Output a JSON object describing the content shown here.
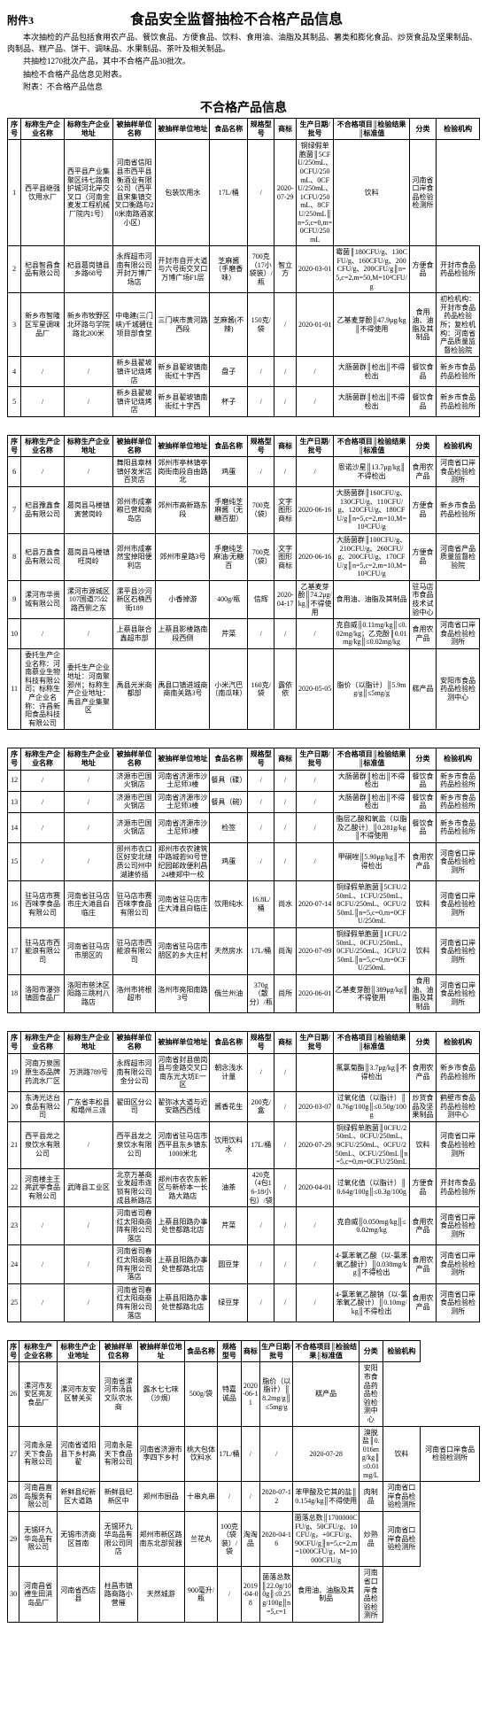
{
  "attachment_label": "附件3",
  "main_title": "食品安全监督抽检不合格产品信息",
  "intro_line1": "本次抽检的产品包括食用农产品、餐饮食品、方便食品、饮料、食用油、油脂及其制品、薯类和膨化食品、炒货食品及坚果制品、肉制品、糕产品、饼干、调味品、水果制品、茶叶及相关制品。",
  "intro_line2": "共抽检1270批次产品，其中不合格产品30批次。",
  "intro_line3": "抽检不合格产品信息见附表。",
  "intro_line4": "附表：不合格产品信息",
  "sub_title": "不合格产品信息",
  "columns": [
    "序号",
    "标称生产企业名称",
    "标称生产企业地址",
    "被抽样单位名称",
    "被抽样单位地址",
    "食品名称",
    "规格型号",
    "商标",
    "生产日期/批号",
    "不合格项目║检验结果║标准值",
    "分类",
    "检验机构"
  ],
  "sections": [
    {
      "rows": [
        [
          "1",
          "西平县继强饮用水厂",
          "西平县产业集聚区纬七路南护城河北岸交叉口（河南金麦发工程机械厂院内1号）",
          "河南省信阳县市西平县衡酒业有限公司（西平县宋集镇交叉口衡路与20米南路酒家小区）",
          "包装饮用水",
          "17L/桶",
          "/",
          "2020-07-29",
          "铜绿假单胞菌║5CFU/250mL、0CFU/250mL、0CFU/250mL、1CFU/250mL、8CFU/250mL║n=5,c=0,m=0CFU/250mL",
          "饮料",
          "河南省口岸食品检验检测所"
        ],
        [
          "2",
          "杞县智昌食品有限公司",
          "杞县葛岗镇县乡路68号",
          "永辉超市河南有限公司开封万博广场店",
          "开封市自开大道与六号街交叉口万博广场F1层",
          "芝麻酱（手磨香味）",
          "700克（17小袋装）/瓶",
          "智立方",
          "2020-03-01",
          "霉菌║180CFU/g、130CFU/g、160CFU/g、200CFU/g、200CFU/g║n=5,c=2,m=50,M=10²CFU/g",
          "方便食品",
          "开封市食品药品检验所"
        ],
        [
          "3",
          "新乡市智隆区军星调味品厂",
          "新乡市牧野区北环路与学院路北200米",
          "中电建(三门峡)千城碧住项目部食堂",
          "三门峡市黄河路西段",
          "芝麻酱(不辣)",
          "150克/袋",
          "/",
          "2020-01-01",
          "乙基麦芽酚║47.9μg/kg║不得使用",
          "食用油、油脂及其制品",
          "初检机构：开封市食品药品检验所；复检机构：河南省产品质量监督检验院"
        ],
        [
          "4",
          "/",
          "/",
          "新乡县翟坡镇许记烧烤店",
          "新乡县翟坡镇南街红十字西",
          "盘子",
          "/",
          "/",
          "/",
          "大肠菌群║检出║不得检出",
          "餐饮食品",
          "新乡市食品药品检验所"
        ],
        [
          "5",
          "/",
          "/",
          "新乡县翟坡镇许记烧烤店",
          "新乡县翟坡镇南街红十字西",
          "杯子",
          "/",
          "/",
          "/",
          "大肠菌群║检出║不得检出",
          "餐饮食品",
          "新乡市食品药品检验所"
        ]
      ]
    },
    {
      "rows": [
        [
          "6",
          "/",
          "/",
          "舞阳县章林镇好发米店百货店",
          "郊州市亭林镇亭岗街南段自由路北",
          "鸡蛋",
          "/",
          "/",
          "/",
          "恩诺沙星║13.7μg/kg║不得检出",
          "食用农产品",
          "河南省口岸食品检验检测所"
        ],
        [
          "7",
          "杞县豫鑫食品有限公司",
          "葛岗县马楼镇寅营岗岭",
          "郊州市成寨粮已营和商岛店",
          "郊州市高新路东段",
          "手磨纯芝麻酱（无糖百甜）",
          "700克（袋）",
          "文字图形商标",
          "2020-06-16",
          "大肠菌群║160CFU/g、130CFU/g、110CFU/g、120CFU/g、180CFU/g║n=5,c=2,m=10,M=10²CFU/g",
          "方便食品",
          "新乡市食品药品检验所"
        ],
        [
          "8",
          "杞县万鑫食品有限公司",
          "葛岗县马楼镇旺岗岭",
          "郊州市成寨然宝掉阳便利店",
          "郊州市星路3号",
          "手磨纯芝麻油/无糖百",
          "700克（袋）",
          "文字图形商标",
          "2020-06-16",
          "大肠菌群║100CFU/g、210CFU/g、260CFU/g、200CFU/g、170CFU/g║n=5,c=2,m=10,M=10²CFU/g",
          "方便食品",
          "河南省产品质量监督检验院"
        ],
        [
          "9",
          "漯河市华贵城有限公司",
          "漯河市源城区107国道75公路西侧之东",
          "漯平县沙河新区石楠西街189",
          "小香掉游",
          "400g/瓶",
          "信辉",
          "2020-04-17",
          "乙基麦芽酚║74.2μg/kg║不得使用",
          "食用油、油脂及其制品",
          "驻马店市食品技术试验中心"
        ],
        [
          "10",
          "/",
          "/",
          "上蔡县联合鑫超市部",
          "上蔡县影楼路南段西侧",
          "芹菜",
          "/",
          "/",
          "/",
          "克自威║0.11mg/kg║≤0.02mg/kg；乙克酚║0.01mg/kg║≤0.02mg/kg",
          "食用农产品",
          "河南省口岸食品检验检测所"
        ],
        [
          "11",
          "委托生产企业名称：河南慕业生物科技有限公司；标称生产企业名称：许昌新阳食品科技有限公司",
          "委托生产企业地址：河南聚邪州；标称生产企业地址：禹县产业集聚区",
          "禹县元米商都部",
          "禹县口镇进城商商南关路3号",
          "小米汽巴（南瓜味）",
          "160克/袋",
          "露依依",
          "2020-05-05",
          "脂价（以脂计）║5.9mg/g║≤5mg/g",
          "糕产品",
          "安阳市食品药品检验检测中心"
        ]
      ]
    },
    {
      "rows": [
        [
          "12",
          "/",
          "/",
          "济源市巴国火锅店",
          "河南省济源市沙土尼师3楼",
          "餐具（碟）",
          "/",
          "/",
          "/",
          "大肠菌群║检出║不得检出",
          "餐饮食品",
          "新乡市食品药品检验所"
        ],
        [
          "13",
          "/",
          "/",
          "济源市巴国火锅店",
          "河南省济源市沙土尼师3楼",
          "餐具（碗）",
          "/",
          "/",
          "/",
          "大肠菌群║检出║不得检出",
          "餐饮食品",
          "新乡市食品药品检验所"
        ],
        [
          "14",
          "/",
          "/",
          "济源市巴国火锅店",
          "河南省济源市沙土尼师3楼",
          "检签",
          "/",
          "/",
          "/",
          "脂层乙酸和氧盐（以脂及乙酸计）║0.281g/kg║不得使用",
          "餐饮食品",
          "新乡市食品药品检验所"
        ],
        [
          "15",
          "/",
          "/",
          "郧州市衣口区好安北缝质公司州中湖建侨插",
          "郑州市衣农建筑中路城若90号世纪园邮政便利昌24楼郑中一校",
          "鸡蛋",
          "/",
          "/",
          "/",
          "甲硐唑║5.90μg/kg║不得检出",
          "食用农产品",
          "河南省口岸食品检验检测所"
        ],
        [
          "16",
          "驻马店市赛百味李食品有限公司",
          "河南省驻马店市庄大滩县白临庄",
          "驻马店市赛百味李食品有限公司",
          "河南省驻马店市庄大滩县白临庄",
          "饮用纯水",
          "16.8L/桶",
          "尚水",
          "2020-07-14",
          "铜绿假单胞菌║5CFU/250mL、1CFU/250mL、8CFU/250mL、0CFU/250mL║n=5,c=0,m=0CFU/250mL",
          "饮料",
          "河南省口岸食品检验检测所"
        ],
        [
          "17",
          "驻马店市西能浪有限公司",
          "河南省驻马店市朋区的",
          "驻马店市西能浪有限公司",
          "河南省驻马店市朋区的乡大庄村",
          "天然房水",
          "17L/桶",
          "尚淘",
          "2020-07-09",
          "铜绿假单胞菌║1CFU/250mL、0CFU/250mL、0CFU/250mL、1CFU/250mL║n=5,c=0,m=0CFU/250mL",
          "饮料",
          "河南省口岸食品检验检测所"
        ],
        [
          "18",
          "洛阳市瀑弥镇圆食品厂",
          "洛阳市慈沐区阳路三跳村八路店",
          "洛州市将根超市",
          "洛州市亮阳南路3号",
          "俄兰州油",
          "370g（散分）/瓶",
          "尚所",
          "2020-06-01",
          "乙基麦芽酚║389μg/kg║不得使用",
          "食用油、油脂及其制品",
          "河南省口岸食品检验检测所"
        ]
      ]
    },
    {
      "rows": [
        [
          "19",
          "河南万泉国原生态品牌药流水厂区",
          "万洪路789号",
          "永辉超市河南有限公司金分公司",
          "河南省封县凿岗县与金路交叉口南东光大坊E一区",
          "朝念浅水计量",
          "/",
          "/",
          "",
          "氟氯菊酯║3.7μg/kg║不得检出",
          "食用农产品",
          "新乡市食品药品检验所"
        ],
        [
          "20",
          "东涛光达台食品有限公司",
          "广东省丰松县和塌州三派",
          "翟田区分公司",
          "翟弥冰大道与近安路西西线",
          "酱香花生",
          "200克/盒",
          "/",
          "2020-03-07",
          "过氧化值（以脂计）║0.76g/100g║≤0.50g/100g",
          "炒货食品及坚果制品",
          "鹤壁市食品药品检验检测中心"
        ],
        [
          "21",
          "西平县龙之泉饮水有限公司",
          "/",
          "西平县龙之泉饮水有限公司",
          "河南省驻马店市西平县东乡镇东1000米北",
          "饮用饮料水",
          "17L/桶",
          "/",
          "2020-07-29",
          "铜绿假单胞菌║0CFU/250mL、0CFU/250mL、9CFU/250mL、0CFU/250mL、0CFU/250mL║n=5,c=0,m=0CFU/250mL",
          "饮料",
          "河南省口岸食品检验检测所"
        ],
        [
          "22",
          "河南楼主王亮武亭食品有限公司",
          "武降县工业区",
          "北京万基商业发超市连锁有限公司成县新路店",
          "郑州市衣农东新区与新桥本一长路大路店",
          "油茶",
          "420克（4包16-18小包）/袋",
          "/",
          "2020-04-01",
          "过氧化值（以脂计）║0.64g/100g║≤0.3g/100g",
          "方便食品",
          "开封市食品药品检验所"
        ],
        [
          "23",
          "/",
          "/",
          "河南省司春红太阳商商阵有限公司落店",
          "上蔡县阳路办事处世都路北店",
          "芹菜",
          "/",
          "/",
          "/",
          "克自威║0.050mg/kg║≤0.02mg/kg",
          "食用农产品",
          "河南省口岸食品检验检测所"
        ],
        [
          "24",
          "/",
          "/",
          "河南省司春红太阳商商阵有限公司落店",
          "上蔡县阳路办事处世都路北店",
          "圆豆芽",
          "/",
          "/",
          "/",
          "4-氯苯氧乙酸（以-氯苯氧乙酸计）║0.038mg/kg║不得检出",
          "食用农产品",
          "河南省口岸食品检验检测所"
        ],
        [
          "25",
          "/",
          "/",
          "河南省司春红太阳商商阵有限公司落店",
          "上蔡县阳路办事处世都路北店",
          "绿豆芽",
          "/",
          "/",
          "/",
          "4-氯苯氧乙酸钠（以-氯苯氧乙酸计）║0.10mg/kg║不得检出",
          "食用农产品",
          "河南省口岸食品检验检测所"
        ]
      ]
    },
    {
      "rows": [
        [
          "26",
          "漯河市友安区亮友食品厂",
          "漯河市友安区替关买",
          "河南省漯河市汤县文队农水商",
          "露水七七味（沙焗）",
          "500g/袋",
          "特嘉诚品",
          "2020-06-11",
          "脂价（以脂计）║8.2mg/g║≤5mg/g",
          "糕产品",
          "安阳市食品药品检验检测中心"
        ],
        [
          "27",
          "河南永是天下食品有限公司",
          "河南省道阳县下乡村高翟",
          "河南永是天下食品有限公司",
          "河南省济源市李四下乡村",
          "桃大包体饮料水",
          "17L/桶",
          "/",
          "/",
          "2020-07-28",
          "溴脱盐║0.016mg/kg║≤0.01mg/L",
          "饮料",
          "河南省口岸食品检验检测所"
        ],
        [
          "28",
          "河南昌直岛服务有限公司",
          "新鲜县纪新区大道路",
          "新鲜县纪新区中",
          "郑州市厨品",
          "十串丸串",
          "/",
          "/",
          "2020-07-12",
          "苯甲酸及它其的盐║0.154g/kg║不得使用",
          "肉制品",
          "河南省口岸食品检验检测所"
        ],
        [
          "29",
          "无锡环九华岛品有限公司",
          "无锡市济商区首南",
          "无锡环九华岛品有限公司同店",
          "郑州市新区路南东北部贸器",
          "兰花丸",
          "100克（袋装）/袋",
          "淘淘品",
          "2020-04-16",
          "菌落总数║1700000CFU/g、50CFU/g、10CFU/g，+0CFU/g、90CFU/g║n=5,c=2,m=1000CFU/g，M=10000CFU/g",
          "炒熟品",
          "河南省口岸食品检验检测所"
        ],
        [
          "30",
          "河南昌省禮生田消岛品厂",
          "河南省西店县",
          "柱昌市镇路商路小营摧",
          "天然城游",
          "900毫升/瓶",
          "/",
          "2019-04-08",
          "菌落总数║22.0g/100g║≤0.25g/100g║n=5,c=1",
          "食用油、油脂及其制品",
          "河南省口岸食品检验检测所"
        ]
      ]
    }
  ]
}
